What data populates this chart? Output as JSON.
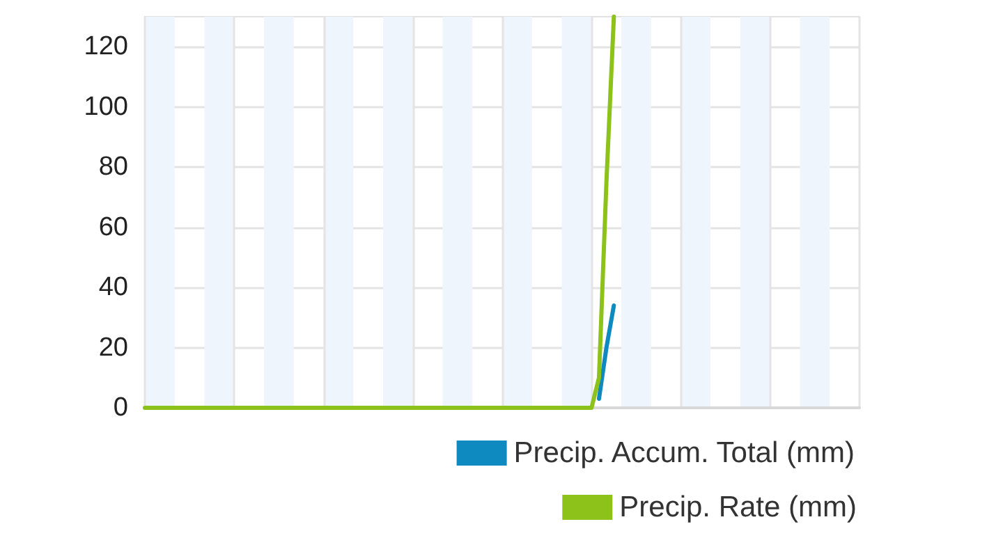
{
  "chart_data": {
    "type": "line",
    "categories": [
      null,
      null,
      null,
      null,
      null,
      null,
      null,
      null,
      null,
      null,
      null,
      null,
      null,
      null,
      null,
      null,
      null,
      null,
      null,
      null,
      null,
      null,
      null,
      null,
      null,
      null,
      null,
      null,
      null,
      null,
      null,
      null,
      null,
      null,
      null,
      null,
      null,
      null,
      null,
      null,
      null,
      null,
      null,
      null,
      null,
      null,
      null,
      null,
      null,
      null,
      null,
      null,
      null,
      null,
      null,
      null,
      null,
      null,
      null,
      null,
      null,
      null,
      null,
      null,
      null,
      null,
      null,
      null,
      null,
      null,
      null,
      null,
      null,
      null,
      null,
      null,
      null,
      null,
      null,
      null,
      null,
      null,
      null,
      null,
      null,
      null,
      null,
      null,
      null,
      null,
      null,
      null,
      null,
      null,
      null,
      null,
      null
    ],
    "series": [
      {
        "name": "Precip. Accum. Total (mm)",
        "color": "#0e8ac0",
        "values": [
          null,
          null,
          null,
          null,
          null,
          null,
          null,
          null,
          null,
          null,
          null,
          null,
          null,
          null,
          null,
          null,
          null,
          null,
          null,
          null,
          null,
          null,
          null,
          null,
          null,
          null,
          null,
          null,
          null,
          null,
          null,
          null,
          null,
          null,
          null,
          null,
          null,
          null,
          null,
          null,
          null,
          null,
          null,
          null,
          null,
          null,
          null,
          null,
          null,
          null,
          null,
          null,
          null,
          null,
          null,
          null,
          null,
          null,
          null,
          null,
          null,
          3,
          20,
          34,
          null,
          null,
          null,
          null,
          null,
          null,
          null,
          null,
          null,
          null,
          null,
          null,
          null,
          null,
          null,
          null,
          null,
          null,
          null,
          null,
          null,
          null,
          null,
          null,
          null,
          null,
          null,
          null,
          null,
          null,
          null,
          null,
          null
        ]
      },
      {
        "name": "Precip. Rate (mm)",
        "color": "#8cc21a",
        "values": [
          0,
          0,
          0,
          0,
          0,
          0,
          0,
          0,
          0,
          0,
          0,
          0,
          0,
          0,
          0,
          0,
          0,
          0,
          0,
          0,
          0,
          0,
          0,
          0,
          0,
          0,
          0,
          0,
          0,
          0,
          0,
          0,
          0,
          0,
          0,
          0,
          0,
          0,
          0,
          0,
          0,
          0,
          0,
          0,
          0,
          0,
          0,
          0,
          0,
          0,
          0,
          0,
          0,
          0,
          0,
          0,
          0,
          0,
          0,
          0,
          0,
          10,
          75,
          130,
          null,
          null,
          null,
          null,
          null,
          null,
          null,
          null,
          null,
          null,
          null,
          null,
          null,
          null,
          null,
          null,
          null,
          null,
          null,
          null,
          null,
          null,
          null,
          null,
          null,
          null,
          null,
          null,
          null,
          null,
          null,
          null,
          null
        ]
      }
    ],
    "ylim": [
      0,
      130
    ],
    "yticks": [
      0,
      20,
      40,
      60,
      80,
      100,
      120
    ],
    "grid": true,
    "legend": "bottom right",
    "line_style": "solid",
    "tick_labels": "y"
  }
}
